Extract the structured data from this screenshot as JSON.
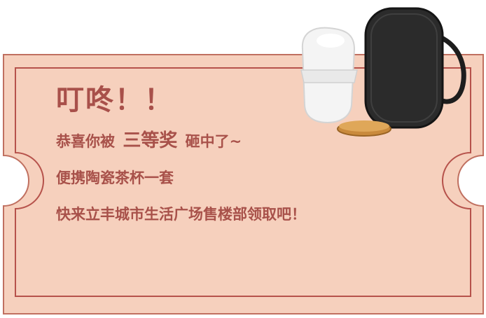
{
  "ticket": {
    "headline": "叮咚！！",
    "congrats_prefix": "恭喜你被",
    "prize_level": "三等奖",
    "congrats_suffix": "砸中了~",
    "prize_item": "便携陶瓷茶杯一套",
    "instruction": "快来立丰城市生活广场售楼部领取吧！"
  },
  "product_image": {
    "icon": "teacup-travel-set-icon",
    "description_items": [
      "white-ceramic-cup",
      "bamboo-coaster",
      "black-mesh-travel-case"
    ]
  },
  "colors": {
    "ticket_fill": "#f6d0bd",
    "ticket_border": "#b85f56",
    "inner_border": "#b6524b",
    "text": "#a8514a"
  }
}
